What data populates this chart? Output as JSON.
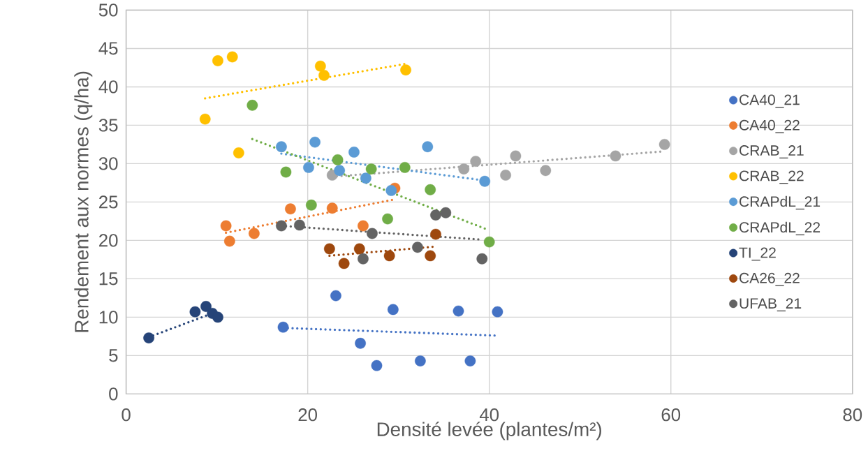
{
  "chart_data": {
    "type": "scatter",
    "xlabel": "Densité levée (plantes/m²)",
    "ylabel": "Rendement aux normes (q/ha)",
    "xlim": [
      0,
      80
    ],
    "ylim": [
      0,
      50
    ],
    "xticks": [
      0,
      20,
      40,
      60,
      80
    ],
    "yticks": [
      0,
      5,
      10,
      15,
      20,
      25,
      30,
      35,
      40,
      45,
      50
    ],
    "grid": true,
    "legend": "right",
    "marker": "circle",
    "series": [
      {
        "name": "CA40_21",
        "color": "#4472c4",
        "x": [
          17.3,
          23.1,
          25.8,
          27.6,
          29.4,
          32.4,
          36.6,
          37.9,
          40.9
        ],
        "values": [
          8.7,
          12.8,
          6.6,
          3.7,
          11.0,
          4.3,
          10.8,
          4.3,
          10.7
        ]
      },
      {
        "name": "CA40_22",
        "color": "#ed7d31",
        "x": [
          11.0,
          11.4,
          14.1,
          18.1,
          22.7,
          26.1,
          29.6
        ],
        "values": [
          21.9,
          19.9,
          20.9,
          24.1,
          24.2,
          21.9,
          26.8
        ]
      },
      {
        "name": "CRAB_21",
        "color": "#a5a5a5",
        "x": [
          22.7,
          37.2,
          38.5,
          42.9,
          41.8,
          46.2,
          53.9,
          59.3
        ],
        "values": [
          28.5,
          29.3,
          30.3,
          31.0,
          28.5,
          29.1,
          31.0,
          32.5
        ]
      },
      {
        "name": "CRAB_22",
        "color": "#ffc000",
        "x": [
          8.7,
          10.1,
          11.7,
          12.4,
          21.4,
          21.8,
          30.8
        ],
        "values": [
          35.8,
          43.4,
          43.9,
          31.4,
          42.7,
          41.5,
          42.2
        ]
      },
      {
        "name": "CRAPdL_21",
        "color": "#5b9bd5",
        "x": [
          17.1,
          20.8,
          20.1,
          23.5,
          25.1,
          26.4,
          29.2,
          33.2,
          39.5
        ],
        "values": [
          32.2,
          32.8,
          29.5,
          29.1,
          31.5,
          28.1,
          26.5,
          32.2,
          27.7
        ]
      },
      {
        "name": "CRAPdL_22",
        "color": "#70ad47",
        "x": [
          13.9,
          17.6,
          20.4,
          23.3,
          27.0,
          30.7,
          28.8,
          33.5,
          40.0
        ],
        "values": [
          37.6,
          28.9,
          24.6,
          30.5,
          29.3,
          29.5,
          22.8,
          26.6,
          19.8
        ]
      },
      {
        "name": "TI_22",
        "color": "#264478",
        "x": [
          2.5,
          7.6,
          8.8,
          9.5,
          10.1
        ],
        "values": [
          7.3,
          10.7,
          11.4,
          10.5,
          10.0
        ]
      },
      {
        "name": "CA26_22",
        "color": "#9e480e",
        "x": [
          22.4,
          24.0,
          25.7,
          29.0,
          33.5,
          34.1
        ],
        "values": [
          18.9,
          17.0,
          18.9,
          18.0,
          18.0,
          20.8
        ]
      },
      {
        "name": "UFAB_21",
        "color": "#636363",
        "x": [
          17.1,
          19.1,
          27.1,
          26.1,
          32.1,
          34.1,
          35.2,
          39.2
        ],
        "values": [
          21.9,
          22.0,
          20.9,
          17.6,
          19.1,
          23.3,
          23.6,
          17.6
        ]
      },
      {
        "type": "line",
        "color": "#4472c4",
        "x": [
          17.3,
          40.9
        ],
        "values": [
          8.6,
          7.6
        ],
        "line_style": "dotted",
        "marker": "none"
      },
      {
        "type": "line",
        "color": "#ed7d31",
        "x": [
          11.0,
          29.4
        ],
        "values": [
          21.0,
          25.3
        ],
        "line_style": "dotted",
        "marker": "none"
      },
      {
        "type": "line",
        "color": "#a5a5a5",
        "x": [
          22.7,
          59.3
        ],
        "values": [
          28.3,
          31.6
        ],
        "line_style": "dotted",
        "marker": "none"
      },
      {
        "type": "line",
        "color": "#ffc000",
        "x": [
          8.7,
          30.8
        ],
        "values": [
          38.5,
          43.0
        ],
        "line_style": "dotted",
        "marker": "none"
      },
      {
        "type": "line",
        "color": "#5b9bd5",
        "x": [
          17.1,
          39.5
        ],
        "values": [
          31.3,
          27.8
        ],
        "line_style": "dotted",
        "marker": "none"
      },
      {
        "type": "line",
        "color": "#70ad47",
        "x": [
          13.9,
          39.6
        ],
        "values": [
          33.2,
          21.5
        ],
        "line_style": "dotted",
        "marker": "none"
      },
      {
        "type": "line",
        "color": "#264478",
        "x": [
          2.5,
          9.5
        ],
        "values": [
          7.4,
          10.5
        ],
        "line_style": "dotted",
        "marker": "none"
      },
      {
        "type": "line",
        "color": "#9e480e",
        "x": [
          22.4,
          34.1
        ],
        "values": [
          18.0,
          19.2
        ],
        "line_style": "dotted",
        "marker": "none"
      },
      {
        "type": "line",
        "color": "#636363",
        "x": [
          17.1,
          39.2
        ],
        "values": [
          21.9,
          20.1
        ],
        "line_style": "dotted",
        "marker": "none"
      }
    ]
  }
}
